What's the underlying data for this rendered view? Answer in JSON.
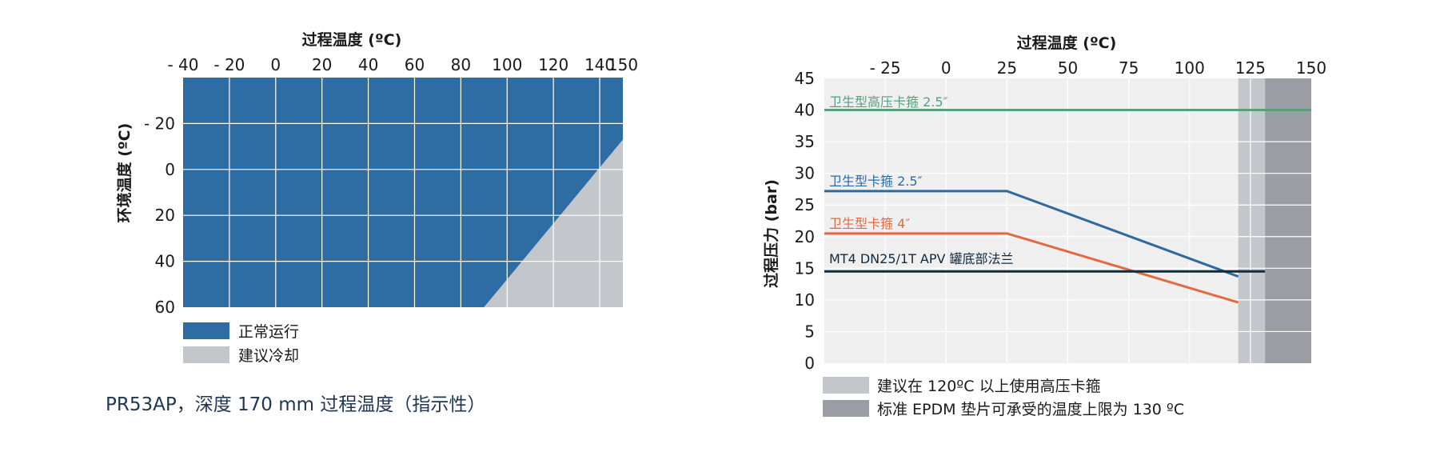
{
  "colors": {
    "blue": "#2e6da4",
    "light_gray": "#c3c6cb",
    "dark_gray": "#9a9da3",
    "plot_bg": "#efeff0",
    "green": "#5a9e7c",
    "orange": "#e26a3f",
    "navy": "#102a3e",
    "series_blue": "#2f6a9f"
  },
  "chart_data": [
    {
      "type": "area",
      "title": "过程温度 (ºC)",
      "xlabel": "过程温度 (ºC)",
      "ylabel": "环境温度 (ºC)",
      "x_ticks": [
        "- 40",
        "- 20",
        "0",
        "20",
        "40",
        "60",
        "80",
        "100",
        "120",
        "140",
        "150"
      ],
      "y_ticks": [
        "- 20",
        "0",
        "20",
        "40",
        "60"
      ],
      "xlim": [
        -40,
        150
      ],
      "ylim": [
        -40,
        60
      ],
      "boundary": {
        "x": [
          90,
          150
        ],
        "y": [
          60,
          -13
        ]
      },
      "legend": [
        {
          "label": "正常运行",
          "color": "#2e6da4"
        },
        {
          "label": "建议冷却",
          "color": "#c3c6cb"
        }
      ],
      "caption": "PR53AP，深度 170 mm 过程温度（指示性）"
    },
    {
      "type": "line",
      "title": "过程温度 (ºC)",
      "xlabel": "过程温度 (ºC)",
      "ylabel": "过程压力 (bar)",
      "x_ticks": [
        "- 25",
        "0",
        "25",
        "50",
        "75",
        "100",
        "125",
        "150"
      ],
      "y_ticks": [
        "0",
        "5",
        "10",
        "15",
        "20",
        "25",
        "30",
        "35",
        "40",
        "45"
      ],
      "xlim": [
        -50,
        150
      ],
      "ylim": [
        0,
        45
      ],
      "series": [
        {
          "name": "卫生型高压卡箍 2.5″",
          "x": [
            -50,
            150
          ],
          "y": [
            40,
            40
          ],
          "color": "#5a9e7c"
        },
        {
          "name": "卫生型卡箍 2.5″",
          "x": [
            -50,
            25,
            120
          ],
          "y": [
            27.2,
            27.2,
            13.7
          ],
          "color": "#2f6a9f"
        },
        {
          "name": "卫生型卡箍 4″",
          "x": [
            -50,
            25,
            120
          ],
          "y": [
            20.5,
            20.5,
            9.6
          ],
          "color": "#e26a3f"
        },
        {
          "name": "MT4 DN25/1T APV 罐底部法兰",
          "x": [
            -50,
            131
          ],
          "y": [
            14.5,
            14.5
          ],
          "color": "#102a3e"
        }
      ],
      "bands": [
        {
          "label": "建议在 120ºC 以上使用高压卡箍",
          "x": [
            120,
            131
          ],
          "color": "#c3c6cb"
        },
        {
          "label": "标准 EPDM 垫片可承受的温度上限为 130 ºC",
          "x": [
            131,
            150
          ],
          "color": "#9a9da3"
        }
      ],
      "grid": true
    }
  ]
}
